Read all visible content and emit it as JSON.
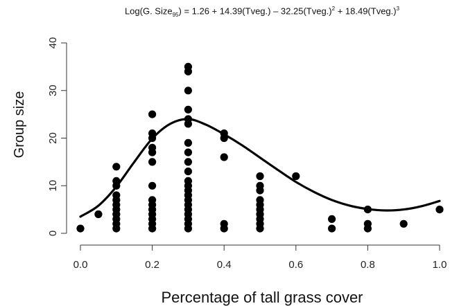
{
  "chart_data": {
    "type": "scatter",
    "title": "Log(G. Size95) = 1.26 + 14.39(Tveg.) – 32.25(Tveg.)2 + 18.49(Tveg.)3",
    "title_parts": {
      "a": "Log(G. Size",
      "sub": "95",
      "b": ") = 1.26 + 14.39(Tveg.) – 32.25(Tveg.)",
      "sup2": "2",
      "c": " + 18.49(Tveg.)",
      "sup3": "3"
    },
    "xlabel": "Percentage of tall grass cover",
    "ylabel": "Group size",
    "xlim": [
      0.0,
      1.0
    ],
    "ylim": [
      0,
      40
    ],
    "xticks": [
      0.0,
      0.2,
      0.4,
      0.6,
      0.8,
      1.0
    ],
    "xtick_labels": [
      "0.0",
      "0.2",
      "0.4",
      "0.6",
      "0.8",
      "1.0"
    ],
    "yticks": [
      0,
      10,
      20,
      30,
      40
    ],
    "ytick_labels": [
      "0",
      "10",
      "20",
      "30",
      "40"
    ],
    "grid": false,
    "legend": "none",
    "points": [
      [
        0.0,
        1
      ],
      [
        0.05,
        4
      ],
      [
        0.1,
        1
      ],
      [
        0.1,
        2
      ],
      [
        0.1,
        3
      ],
      [
        0.1,
        4
      ],
      [
        0.1,
        5
      ],
      [
        0.1,
        6
      ],
      [
        0.1,
        7
      ],
      [
        0.1,
        8
      ],
      [
        0.1,
        10
      ],
      [
        0.1,
        11
      ],
      [
        0.1,
        14
      ],
      [
        0.2,
        1
      ],
      [
        0.2,
        2
      ],
      [
        0.2,
        3
      ],
      [
        0.2,
        4
      ],
      [
        0.2,
        5
      ],
      [
        0.2,
        6
      ],
      [
        0.2,
        7
      ],
      [
        0.2,
        10
      ],
      [
        0.2,
        15
      ],
      [
        0.2,
        17
      ],
      [
        0.2,
        18
      ],
      [
        0.2,
        20
      ],
      [
        0.2,
        21
      ],
      [
        0.2,
        25
      ],
      [
        0.3,
        1
      ],
      [
        0.3,
        2
      ],
      [
        0.3,
        3
      ],
      [
        0.3,
        4
      ],
      [
        0.3,
        5
      ],
      [
        0.3,
        6
      ],
      [
        0.3,
        7
      ],
      [
        0.3,
        8
      ],
      [
        0.3,
        9
      ],
      [
        0.3,
        10
      ],
      [
        0.3,
        11
      ],
      [
        0.3,
        13
      ],
      [
        0.3,
        15
      ],
      [
        0.3,
        17
      ],
      [
        0.3,
        19
      ],
      [
        0.3,
        23
      ],
      [
        0.3,
        24
      ],
      [
        0.3,
        26
      ],
      [
        0.3,
        30
      ],
      [
        0.3,
        34
      ],
      [
        0.3,
        35
      ],
      [
        0.4,
        1
      ],
      [
        0.4,
        2
      ],
      [
        0.4,
        16
      ],
      [
        0.4,
        20
      ],
      [
        0.4,
        21
      ],
      [
        0.5,
        1
      ],
      [
        0.5,
        2
      ],
      [
        0.5,
        3
      ],
      [
        0.5,
        4
      ],
      [
        0.5,
        5
      ],
      [
        0.5,
        6
      ],
      [
        0.5,
        7
      ],
      [
        0.5,
        9
      ],
      [
        0.5,
        10
      ],
      [
        0.5,
        12
      ],
      [
        0.6,
        12
      ],
      [
        0.7,
        1
      ],
      [
        0.7,
        3
      ],
      [
        0.8,
        1
      ],
      [
        0.8,
        2
      ],
      [
        0.8,
        5
      ],
      [
        0.9,
        2
      ],
      [
        1.0,
        5
      ]
    ],
    "fit_curve": {
      "type": "cubic",
      "x": [
        0.0,
        0.05,
        0.1,
        0.15,
        0.2,
        0.25,
        0.3,
        0.35,
        0.4,
        0.45,
        0.5,
        0.55,
        0.6,
        0.65,
        0.7,
        0.75,
        0.8,
        0.85,
        0.9,
        0.95,
        1.0
      ],
      "y": [
        3.5,
        5.8,
        9.8,
        15.0,
        19.9,
        23.0,
        24.0,
        22.8,
        20.8,
        18.5,
        15.9,
        13.3,
        10.8,
        8.7,
        7.0,
        5.8,
        5.1,
        4.8,
        5.0,
        5.7,
        6.8
      ]
    }
  }
}
